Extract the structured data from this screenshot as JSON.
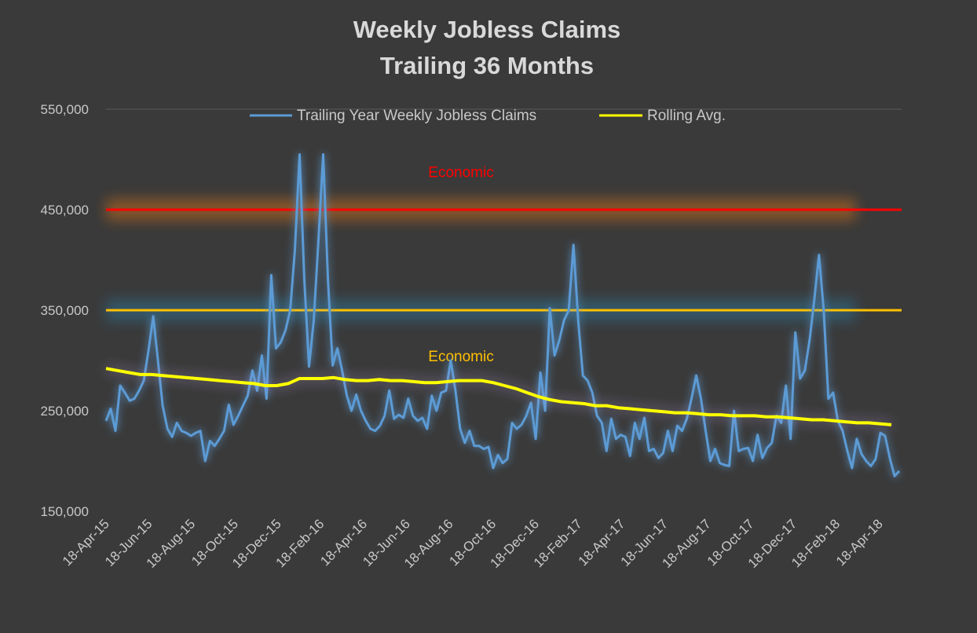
{
  "chart_data": {
    "type": "line",
    "title": [
      "Weekly Jobless Claims",
      "Trailing 36 Months"
    ],
    "ylim": [
      150000,
      550000
    ],
    "y_ticks": [
      "150,000",
      "250,000",
      "350,000",
      "450,000",
      "550,000"
    ],
    "y_tick_values": [
      150000,
      250000,
      350000,
      450000,
      550000
    ],
    "x_ticks": [
      "18-Apr-15",
      "18-Jun-15",
      "18-Aug-15",
      "18-Oct-15",
      "18-Dec-15",
      "18-Feb-16",
      "18-Apr-16",
      "18-Jun-16",
      "18-Aug-16",
      "18-Oct-16",
      "18-Dec-16",
      "18-Feb-17",
      "18-Apr-17",
      "18-Jun-17",
      "18-Aug-17",
      "18-Oct-17",
      "18-Dec-17",
      "18-Feb-18",
      "18-Apr-18"
    ],
    "grid": "horizontal-top-only",
    "legend_position": "top",
    "series": [
      {
        "name": "Trailing Year Weekly Jobless Claims",
        "color": "#5b9bd5",
        "values": [
          240000,
          252000,
          230000,
          275000,
          268000,
          260000,
          262000,
          270000,
          280000,
          310000,
          344000,
          300000,
          255000,
          232000,
          224000,
          238000,
          230000,
          228000,
          225000,
          228000,
          230000,
          200000,
          220000,
          215000,
          222000,
          230000,
          256000,
          236000,
          245000,
          255000,
          265000,
          290000,
          270000,
          305000,
          262000,
          385000,
          312000,
          318000,
          330000,
          350000,
          410000,
          505000,
          380000,
          294000,
          340000,
          420000,
          505000,
          380000,
          295000,
          312000,
          290000,
          265000,
          250000,
          266000,
          250000,
          240000,
          232000,
          230000,
          235000,
          245000,
          270000,
          242000,
          246000,
          243000,
          262000,
          245000,
          240000,
          243000,
          232000,
          265000,
          250000,
          268000,
          270000,
          300000,
          270000,
          232000,
          218000,
          230000,
          215000,
          215000,
          212000,
          214000,
          193000,
          206000,
          198000,
          202000,
          238000,
          232000,
          236000,
          245000,
          258000,
          222000,
          288000,
          250000,
          352000,
          305000,
          320000,
          340000,
          350000,
          415000,
          340000,
          285000,
          280000,
          268000,
          245000,
          238000,
          210000,
          242000,
          222000,
          226000,
          224000,
          205000,
          238000,
          222000,
          243000,
          210000,
          212000,
          203000,
          208000,
          230000,
          210000,
          235000,
          230000,
          242000,
          262000,
          285000,
          262000,
          230000,
          200000,
          212000,
          198000,
          196000,
          195000,
          250000,
          210000,
          212000,
          213000,
          200000,
          226000,
          203000,
          213000,
          218000,
          245000,
          238000,
          275000,
          222000,
          328000,
          282000,
          290000,
          320000,
          360000,
          405000,
          350000,
          262000,
          268000,
          240000,
          230000,
          210000,
          193000,
          222000,
          207000,
          200000,
          195000,
          202000,
          228000,
          225000,
          203000,
          185000,
          190000
        ]
      },
      {
        "name": "Rolling Avg.",
        "color": "#ffff00",
        "values": [
          292000,
          290000,
          288000,
          286000,
          286000,
          285000,
          284000,
          283000,
          282000,
          281000,
          280000,
          279000,
          278000,
          277000,
          275000,
          275000,
          277000,
          282000,
          282000,
          282000,
          283000,
          281000,
          280000,
          280000,
          281000,
          280000,
          280000,
          279000,
          278000,
          278000,
          279000,
          280000,
          280000,
          280000,
          278000,
          275000,
          272000,
          268000,
          264000,
          261000,
          259000,
          258000,
          257000,
          255000,
          255000,
          253000,
          252000,
          251000,
          250000,
          249000,
          248000,
          248000,
          247000,
          246000,
          246000,
          245000,
          245000,
          245000,
          244000,
          244000,
          243000,
          242000,
          241000,
          241000,
          240000,
          239000,
          238000,
          238000,
          237000,
          236000
        ]
      }
    ],
    "threshold_lines": [
      {
        "value": 450000,
        "color": "#ff0000",
        "glow": "#c46a1a",
        "label": "Economic",
        "label_value": 487000
      },
      {
        "value": 350000,
        "color": "#ffc000",
        "glow": "#2f6f8f",
        "label": "Economic",
        "label_value": 304000
      }
    ]
  }
}
